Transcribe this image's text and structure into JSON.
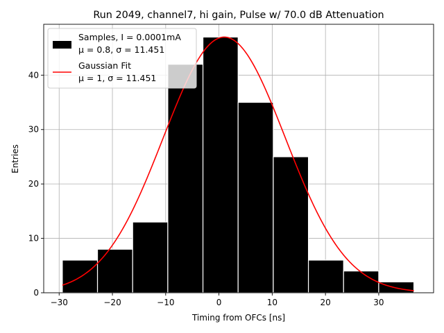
{
  "chart_data": {
    "type": "bar",
    "title": "Run 2049, channel7, hi gain, Pulse w/ 70.0 dB Attenuation",
    "xlabel": "Timing from OFCs [ns]",
    "ylabel": "Entries",
    "xlim": [
      -32.9,
      40.3
    ],
    "ylim": [
      0,
      49.35
    ],
    "xticks": [
      -30,
      -20,
      -10,
      0,
      10,
      20,
      30
    ],
    "xtick_labels": [
      "−30",
      "−20",
      "−10",
      "0",
      "10",
      "20",
      "30"
    ],
    "yticks": [
      0,
      10,
      20,
      30,
      40
    ],
    "ytick_labels": [
      "0",
      "10",
      "20",
      "30",
      "40"
    ],
    "grid": true,
    "legend_position": "top-left",
    "histogram": {
      "name": "Samples, I = 0.0001mA",
      "stats_label": "μ = 0.8, σ = 11.451",
      "color": "#000000",
      "edge_color": "#ffffff",
      "bin_edges": [
        -29.4,
        -22.8,
        -16.2,
        -9.6,
        -3.0,
        3.6,
        10.2,
        16.8,
        23.4,
        30.0,
        36.6
      ],
      "counts": [
        6,
        8,
        13,
        42,
        47,
        35,
        25,
        6,
        4,
        2
      ]
    },
    "fit": {
      "name": "Gaussian Fit",
      "stats_label": "μ = 1, σ = 11.451",
      "color": "#ff0000",
      "type": "gaussian",
      "amplitude": 47,
      "mean": 1,
      "sigma": 11.451,
      "x_range": [
        -29.4,
        36.6
      ]
    }
  }
}
